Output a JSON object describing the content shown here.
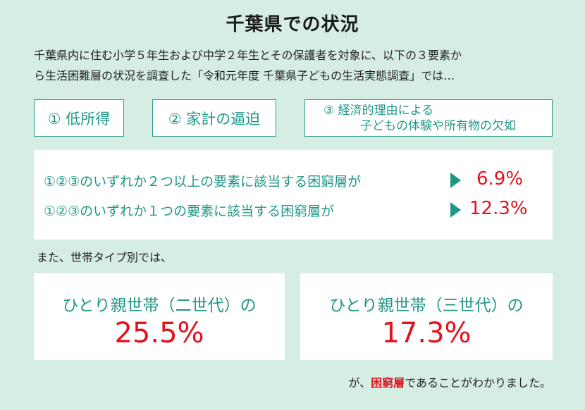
{
  "title": "千葉県での状況",
  "intro": {
    "line1": "千葉県内に住む小学５年生および中学２年生とその保護者を対象に、以下の３要素か",
    "line2": "ら生活困難層の状況を調査した「令和元年度 千葉県子どもの生活実態調査」では…"
  },
  "factors": [
    {
      "label": "① 低所得"
    },
    {
      "label": "② 家計の逼迫"
    },
    {
      "line1": "③ 経済的理由による",
      "line2": "子どもの体験や所有物の欠如"
    }
  ],
  "rates": [
    {
      "label": "①②③のいずれか２つ以上の要素に該当する困窮層が",
      "value": "6.9%"
    },
    {
      "label": "①②③のいずれか１つの要素に該当する困窮層が",
      "value": "12.3%"
    }
  ],
  "household_intro": "また、世帯タイプ別では、",
  "households": [
    {
      "label": "ひとり親世帯（二世代）の",
      "value": "25.5%"
    },
    {
      "label": "ひとり親世帯（三世代）の",
      "value": "17.3%"
    }
  ],
  "conclusion": {
    "prefix": "が、",
    "highlight": "困窮層",
    "suffix": "であることがわかりました。"
  },
  "colors": {
    "background": "#d6ede4",
    "teal": "#1f9786",
    "red": "#e0141e"
  }
}
